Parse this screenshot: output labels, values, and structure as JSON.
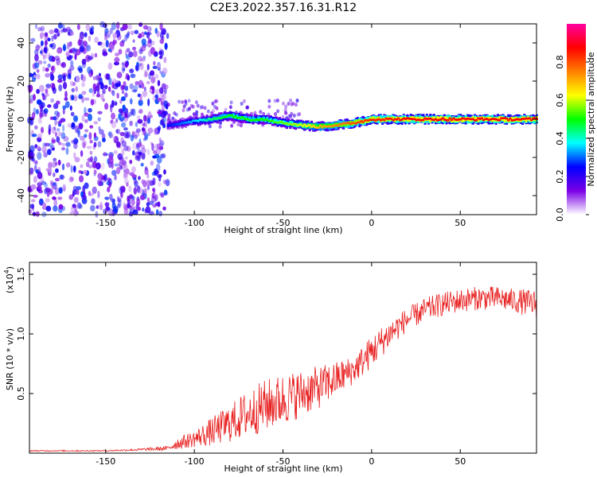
{
  "title": "C2E3.2022.357.16.31.R12",
  "colorbar": {
    "label": "Normalized spectral amplitude",
    "ticks": [
      "0.0",
      "0.2",
      "0.4",
      "0.6",
      "0.8"
    ],
    "tick_values": [
      0.0,
      0.2,
      0.4,
      0.6,
      0.8
    ],
    "range": [
      0,
      1
    ],
    "colors": [
      "#ffffff",
      "#7a00e6",
      "#0000ff",
      "#00ffff",
      "#00ff00",
      "#ffff00",
      "#ff8000",
      "#ff0000",
      "#ff00a0"
    ]
  },
  "chart_data": [
    {
      "type": "heatmap",
      "title": "",
      "xlabel": "Height of straight line (km)",
      "ylabel": "Frequency (Hz)",
      "xlim": [
        -193,
        93
      ],
      "ylim": [
        -50,
        50
      ],
      "xticks": [
        -150,
        -100,
        -50,
        0,
        50
      ],
      "yticks": [
        -40,
        -20,
        0,
        20,
        40
      ],
      "xtick_labels": [
        "-150",
        "-100",
        "-50",
        "0",
        "50"
      ],
      "ytick_labels": [
        "-40",
        "-20",
        "0",
        "20",
        "40"
      ],
      "ridge": {
        "x": [
          -115,
          -100,
          -90,
          -80,
          -70,
          -60,
          -50,
          -40,
          -30,
          -20,
          -10,
          0,
          10,
          20,
          30,
          40,
          50,
          60,
          70,
          80,
          93
        ],
        "frequency": [
          -3,
          -1,
          0,
          2,
          0,
          0,
          -2,
          -3,
          -4,
          -3,
          -2,
          0,
          0,
          0,
          0,
          0,
          0,
          0,
          0,
          0,
          0
        ],
        "amplitude": [
          0.25,
          0.35,
          0.45,
          0.5,
          0.5,
          0.5,
          0.55,
          0.6,
          0.7,
          0.75,
          0.8,
          0.85,
          0.85,
          0.88,
          0.88,
          0.88,
          0.88,
          0.88,
          0.88,
          0.88,
          0.88
        ]
      },
      "noise_region": {
        "x": [
          -193,
          -115
        ],
        "frequency": [
          -50,
          50
        ],
        "amplitude_max": 0.25
      }
    },
    {
      "type": "line",
      "title": "",
      "xlabel": "Height of straight line (km)",
      "ylabel": "SNR (10 * v/v)",
      "y_multiplier_label": "(x10",
      "y_multiplier_exp": "4",
      "y_multiplier_close": ")",
      "xlim": [
        -193,
        93
      ],
      "ylim": [
        0,
        1.6
      ],
      "xticks": [
        -150,
        -100,
        -50,
        0,
        50
      ],
      "yticks": [
        0.5,
        1.0,
        1.5
      ],
      "xtick_labels": [
        "-150",
        "-100",
        "-50",
        "0",
        "50"
      ],
      "ytick_labels": [
        "0.5",
        "1.0",
        "1.5"
      ],
      "color": "#e82020",
      "series": [
        {
          "x": [
            -193,
            -170,
            -150,
            -130,
            -115,
            -110,
            -100,
            -90,
            -80,
            -70,
            -60,
            -50,
            -40,
            -30,
            -20,
            -10,
            0,
            10,
            20,
            30,
            40,
            50,
            60,
            70,
            80,
            93
          ],
          "values": [
            0.02,
            0.02,
            0.02,
            0.03,
            0.04,
            0.08,
            0.12,
            0.18,
            0.25,
            0.33,
            0.4,
            0.45,
            0.5,
            0.55,
            0.62,
            0.7,
            0.85,
            1.0,
            1.12,
            1.2,
            1.25,
            1.28,
            1.3,
            1.3,
            1.28,
            1.25
          ],
          "spread": [
            0.005,
            0.005,
            0.005,
            0.01,
            0.02,
            0.05,
            0.07,
            0.12,
            0.16,
            0.2,
            0.22,
            0.22,
            0.2,
            0.18,
            0.15,
            0.12,
            0.14,
            0.12,
            0.1,
            0.1,
            0.1,
            0.1,
            0.1,
            0.1,
            0.1,
            0.12
          ]
        }
      ]
    }
  ]
}
